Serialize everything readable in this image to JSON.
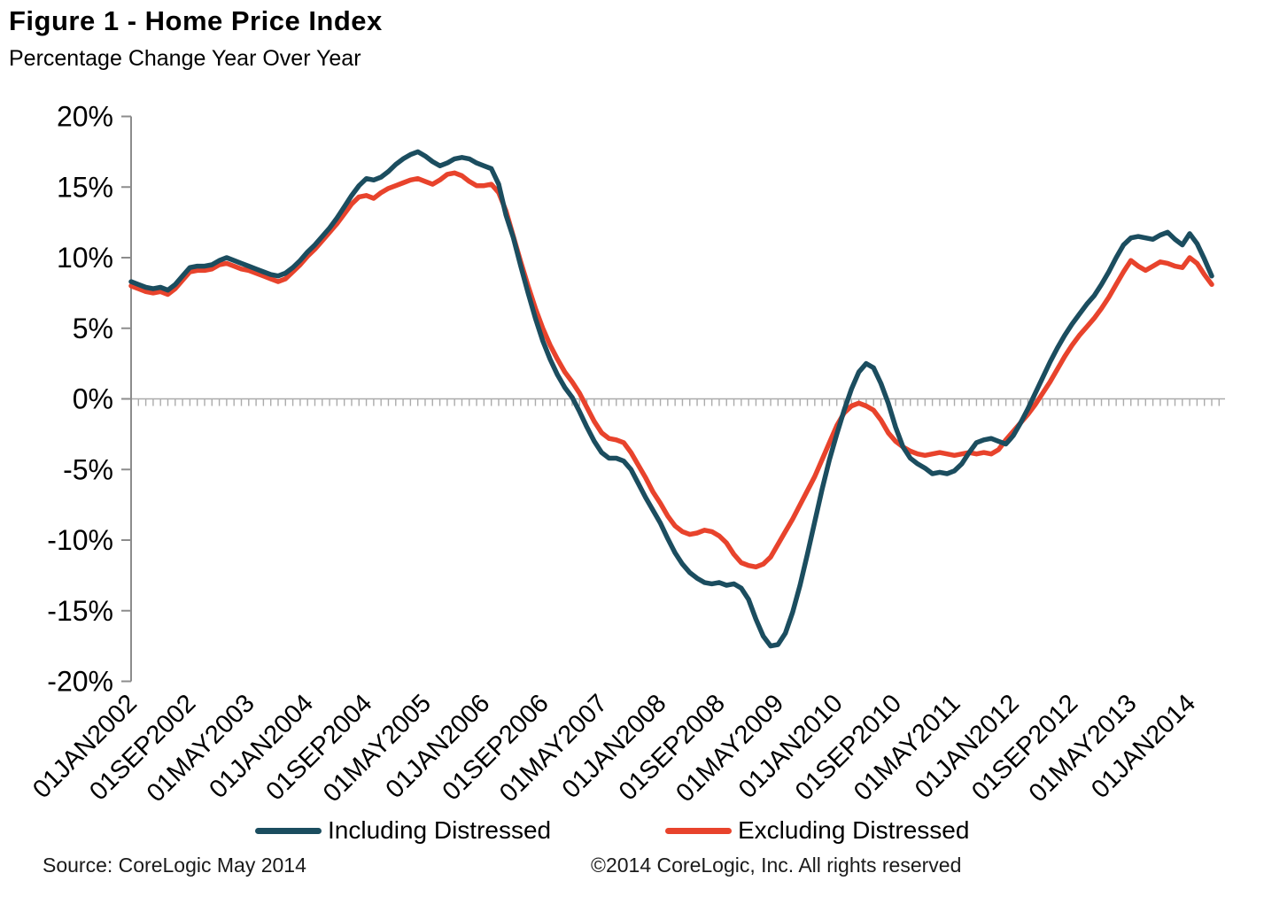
{
  "header": {
    "title": "Figure 1 - Home Price Index",
    "subtitle": "Percentage Change Year Over Year"
  },
  "legend": {
    "items": [
      {
        "label": "Including Distressed",
        "color": "#1B4D5F"
      },
      {
        "label": "Excluding Distressed",
        "color": "#E8432C"
      }
    ]
  },
  "footer": {
    "source": "Source: CoreLogic  May 2014",
    "copyright": "©2014 CoreLogic, Inc. All rights reserved"
  },
  "chart_data": {
    "type": "line",
    "title": "Figure 1 - Home Price Index",
    "subtitle": "Percentage Change Year Over Year",
    "x_start": "2002-01",
    "x_frequency": "monthly",
    "x_tick_interval_months": 8,
    "x_tick_labels": [
      "01JAN2002",
      "01SEP2002",
      "01MAY2003",
      "01JAN2004",
      "01SEP2004",
      "01MAY2005",
      "01JAN2006",
      "01SEP2006",
      "01MAY2007",
      "01JAN2008",
      "01SEP2008",
      "01MAY2009",
      "01JAN2010",
      "01SEP2010",
      "01MAY2011",
      "01JAN2012",
      "01SEP2012",
      "01MAY2013",
      "01JAN2014"
    ],
    "y_tick_labels": [
      "20%",
      "15%",
      "10%",
      "5%",
      "0%",
      "-5%",
      "-10%",
      "-15%",
      "-20%"
    ],
    "ylim": [
      -20,
      20
    ],
    "zero_reference_line": true,
    "axis_color": "#8C8C8C",
    "zero_line_color": "#ABABAB",
    "grid": false,
    "legend_position": "bottom",
    "series": [
      {
        "name": "Including Distressed",
        "color": "#1B4D5F",
        "values": [
          8.3,
          8.1,
          7.9,
          7.8,
          7.9,
          7.7,
          8.1,
          8.7,
          9.3,
          9.4,
          9.4,
          9.5,
          9.8,
          10.0,
          9.8,
          9.6,
          9.4,
          9.2,
          9.0,
          8.8,
          8.7,
          8.9,
          9.3,
          9.8,
          10.4,
          10.9,
          11.5,
          12.1,
          12.8,
          13.6,
          14.4,
          15.1,
          15.6,
          15.5,
          15.7,
          16.1,
          16.6,
          17.0,
          17.3,
          17.5,
          17.2,
          16.8,
          16.5,
          16.7,
          17.0,
          17.1,
          17.0,
          16.7,
          16.5,
          16.3,
          15.2,
          13.0,
          11.4,
          9.4,
          7.5,
          5.7,
          4.1,
          2.8,
          1.7,
          0.8,
          0.1,
          -0.9,
          -2.0,
          -3.0,
          -3.8,
          -4.2,
          -4.2,
          -4.4,
          -5.0,
          -6.0,
          -7.0,
          -7.9,
          -8.8,
          -9.9,
          -10.9,
          -11.7,
          -12.3,
          -12.7,
          -13.0,
          -13.1,
          -13.0,
          -13.2,
          -13.1,
          -13.4,
          -14.2,
          -15.6,
          -16.8,
          -17.5,
          -17.4,
          -16.6,
          -15.1,
          -13.2,
          -11.0,
          -8.7,
          -6.4,
          -4.3,
          -2.5,
          -0.8,
          0.7,
          1.9,
          2.5,
          2.2,
          1.1,
          -0.3,
          -2.0,
          -3.4,
          -4.2,
          -4.6,
          -4.9,
          -5.3,
          -5.2,
          -5.3,
          -5.1,
          -4.6,
          -3.8,
          -3.1,
          -2.9,
          -2.8,
          -3.0,
          -3.2,
          -2.6,
          -1.7,
          -0.7,
          0.4,
          1.5,
          2.6,
          3.6,
          4.5,
          5.3,
          6.0,
          6.7,
          7.3,
          8.1,
          9.0,
          10.0,
          10.9,
          11.4,
          11.5,
          11.4,
          11.3,
          11.6,
          11.8,
          11.3,
          10.9,
          11.7,
          11.0,
          9.9,
          8.7
        ]
      },
      {
        "name": "Excluding Distressed",
        "color": "#E8432C",
        "values": [
          8.0,
          7.8,
          7.6,
          7.5,
          7.6,
          7.4,
          7.8,
          8.4,
          9.0,
          9.1,
          9.1,
          9.2,
          9.5,
          9.6,
          9.4,
          9.2,
          9.1,
          8.9,
          8.7,
          8.5,
          8.3,
          8.5,
          9.0,
          9.5,
          10.1,
          10.6,
          11.2,
          11.8,
          12.4,
          13.1,
          13.8,
          14.3,
          14.4,
          14.2,
          14.6,
          14.9,
          15.1,
          15.3,
          15.5,
          15.6,
          15.4,
          15.2,
          15.5,
          15.9,
          16.0,
          15.8,
          15.4,
          15.1,
          15.1,
          15.2,
          14.6,
          13.3,
          11.5,
          9.7,
          8.0,
          6.4,
          5.0,
          3.8,
          2.8,
          1.9,
          1.2,
          0.4,
          -0.6,
          -1.6,
          -2.4,
          -2.8,
          -2.9,
          -3.1,
          -3.8,
          -4.7,
          -5.6,
          -6.6,
          -7.4,
          -8.3,
          -9.0,
          -9.4,
          -9.6,
          -9.5,
          -9.3,
          -9.4,
          -9.7,
          -10.2,
          -11.0,
          -11.6,
          -11.8,
          -11.9,
          -11.7,
          -11.2,
          -10.3,
          -9.4,
          -8.5,
          -7.5,
          -6.5,
          -5.5,
          -4.3,
          -3.1,
          -1.9,
          -1.0,
          -0.5,
          -0.3,
          -0.5,
          -0.8,
          -1.5,
          -2.4,
          -3.0,
          -3.4,
          -3.7,
          -3.9,
          -4.0,
          -3.9,
          -3.8,
          -3.9,
          -4.0,
          -3.9,
          -3.8,
          -3.9,
          -3.8,
          -3.9,
          -3.6,
          -2.9,
          -2.3,
          -1.7,
          -1.1,
          -0.4,
          0.4,
          1.2,
          2.1,
          3.0,
          3.8,
          4.5,
          5.1,
          5.7,
          6.4,
          7.2,
          8.1,
          9.0,
          9.8,
          9.4,
          9.1,
          9.4,
          9.7,
          9.6,
          9.4,
          9.3,
          10.0,
          9.6,
          8.8,
          8.1
        ]
      }
    ]
  }
}
